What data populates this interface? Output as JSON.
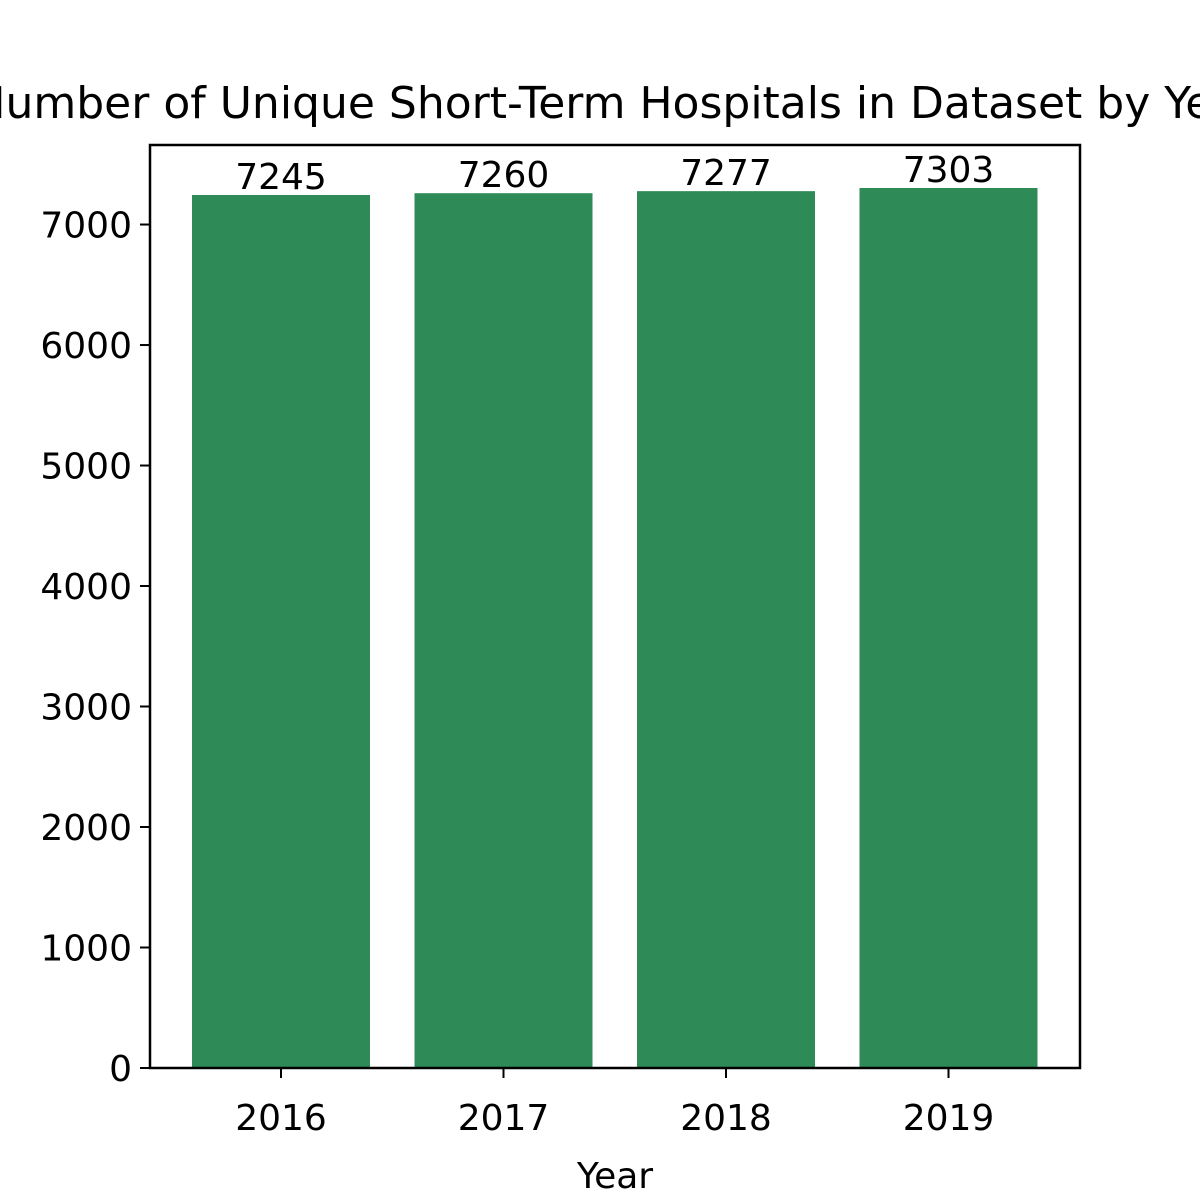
{
  "chart_data": {
    "type": "bar",
    "title": "Number of Unique Short-Term Hospitals in Dataset by Year",
    "xlabel": "Year",
    "ylabel": "",
    "categories": [
      "2016",
      "2017",
      "2018",
      "2019"
    ],
    "values": [
      7245,
      7260,
      7277,
      7303
    ],
    "data_labels": [
      "7245",
      "7260",
      "7277",
      "7303"
    ],
    "ylim": [
      0,
      7660
    ],
    "yticks": [
      0,
      1000,
      2000,
      3000,
      4000,
      5000,
      6000,
      7000
    ],
    "ytick_labels": [
      "0",
      "1000",
      "2000",
      "3000",
      "4000",
      "5000",
      "6000",
      "7000"
    ],
    "grid": false,
    "legend": "none",
    "bar_color": "#2e8b57"
  }
}
